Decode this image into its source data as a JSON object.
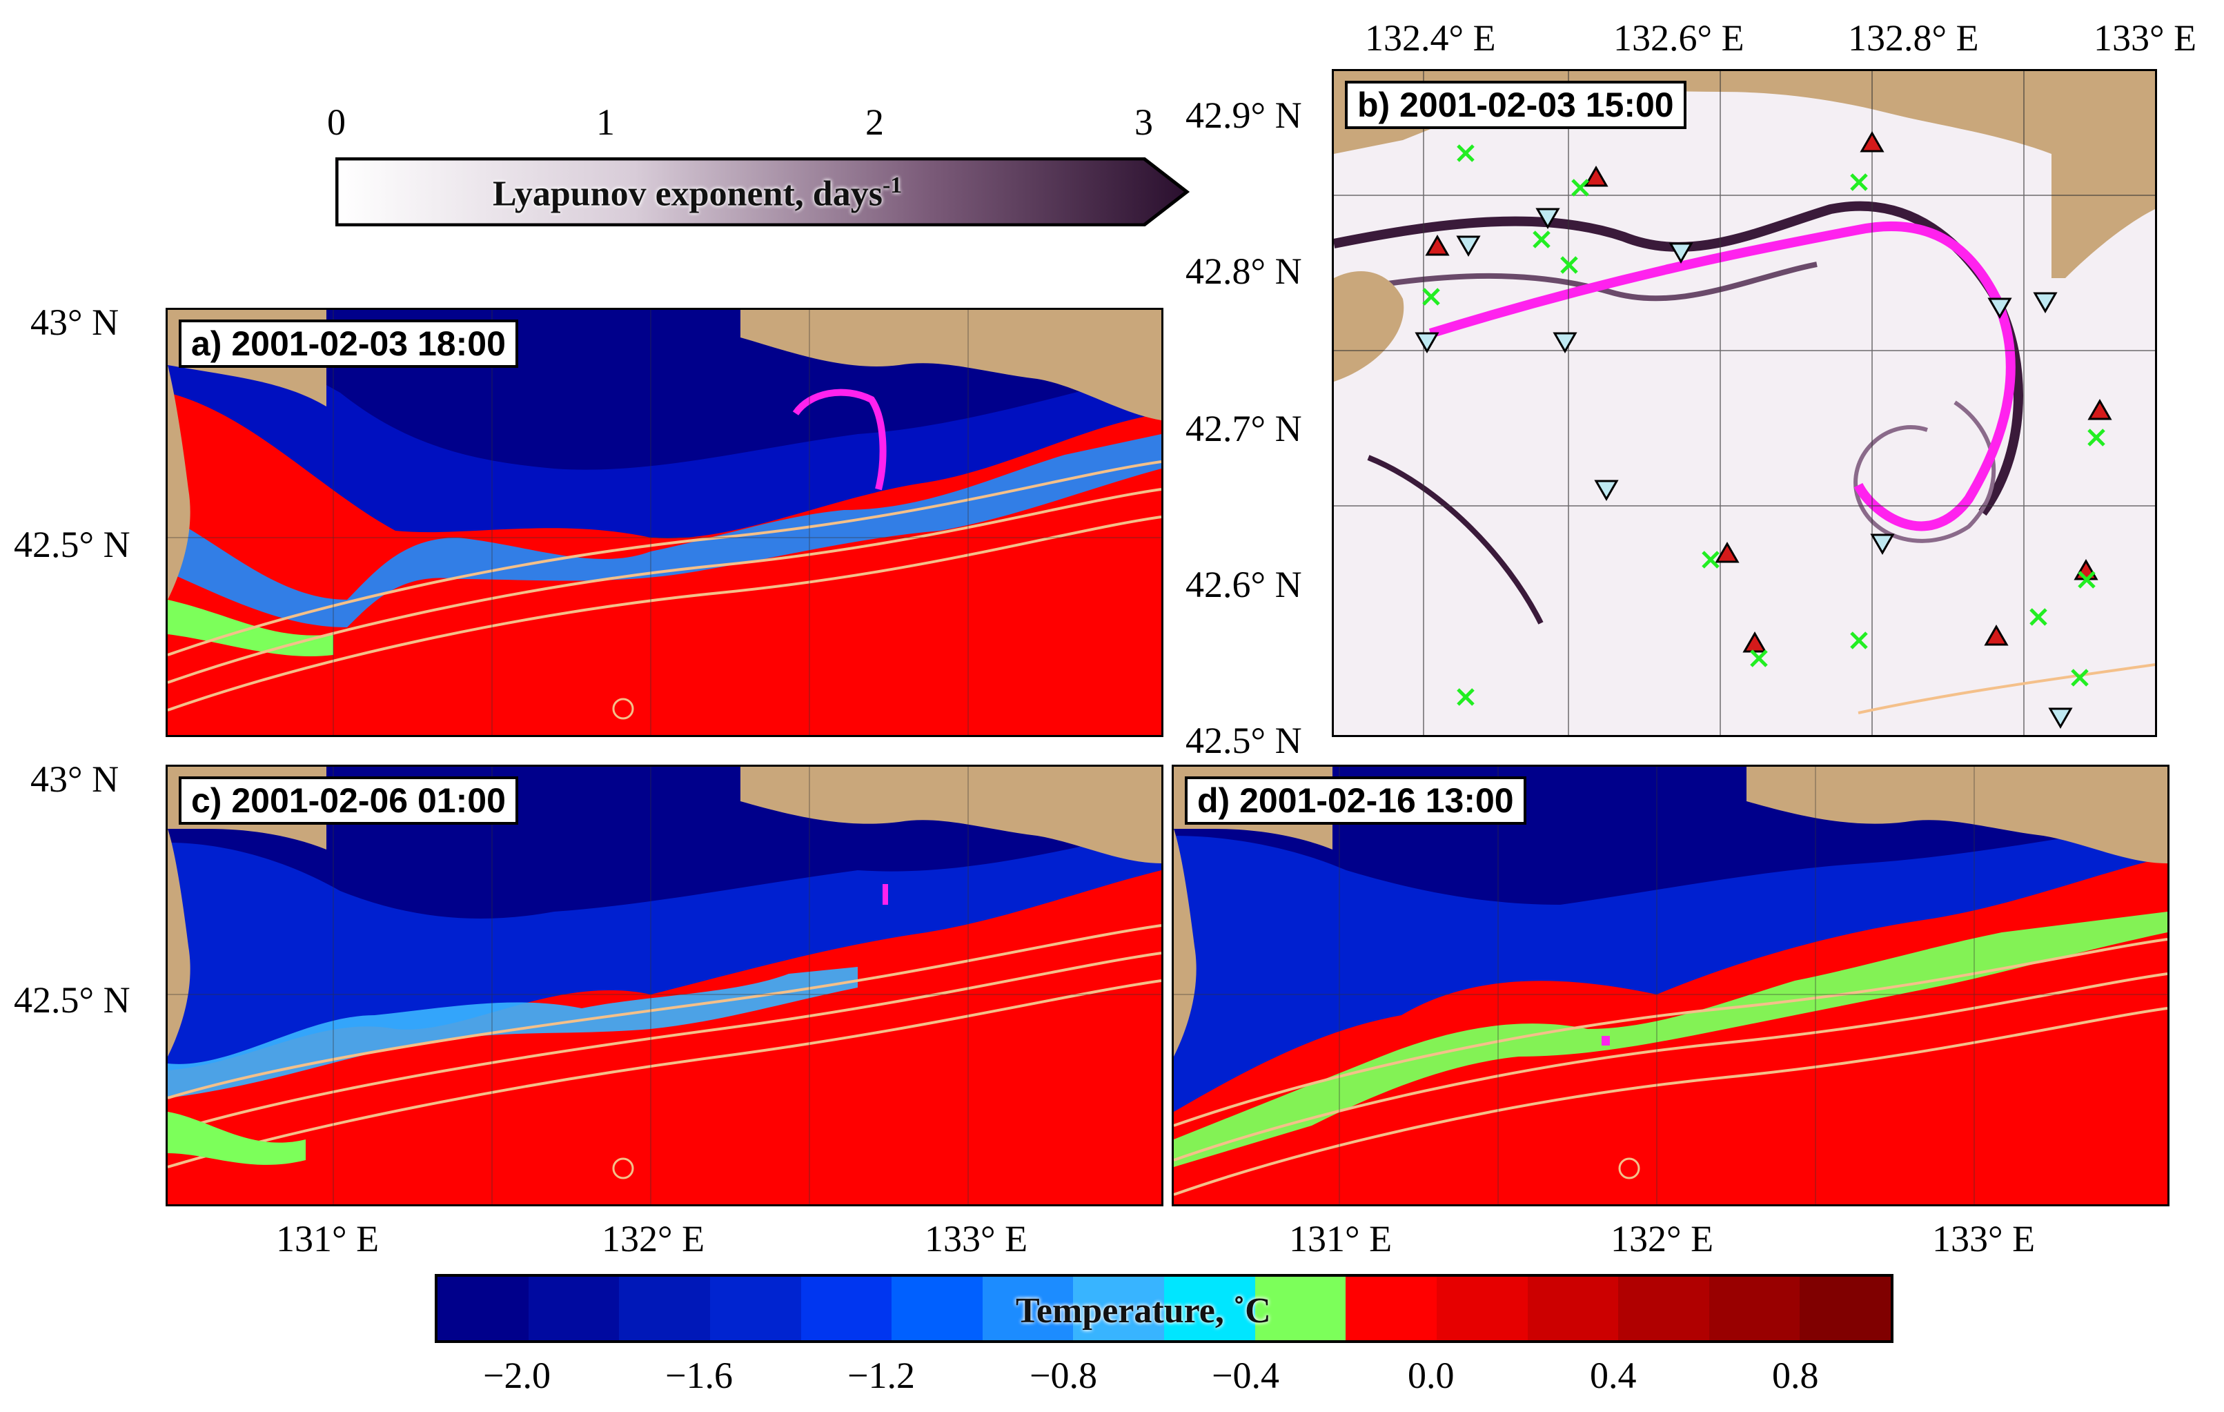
{
  "lyapunov_bar": {
    "title": "Lyapunov exponent, days",
    "title_sup": "-1",
    "ticks": [
      "0",
      "1",
      "2",
      "3"
    ],
    "color_low": "#ffffff",
    "color_high": "#2a0f2e"
  },
  "panels": {
    "a": {
      "title": "a) 2001-02-03 18:00"
    },
    "b": {
      "title": "b) 2001-02-03 15:00"
    },
    "c": {
      "title": "c) 2001-02-06 01:00"
    },
    "d": {
      "title": "d) 2001-02-16 13:00"
    }
  },
  "left_lat_labels": {
    "a_top": "43° N",
    "a_mid": "42.5° N",
    "c_top": "43° N",
    "c_mid": "42.5° N"
  },
  "bottom_lon_labels": {
    "c": [
      "131° E",
      "132° E",
      "133° E"
    ],
    "d": [
      "131° E",
      "132° E",
      "133° E"
    ]
  },
  "b_lon_labels": [
    "132.4° E",
    "132.6° E",
    "132.8° E",
    "133° E"
  ],
  "b_lat_labels": [
    "42.9° N",
    "42.8° N",
    "42.7° N",
    "42.6° N",
    "42.5° N"
  ],
  "temperature_bar": {
    "title": "Temperature, ˚C",
    "ticks": [
      "−2.0",
      "−1.6",
      "−1.2",
      "−0.8",
      "−0.4",
      "0.0",
      "0.4",
      "0.8"
    ],
    "colors": [
      "#00008b",
      "#000aa0",
      "#0018b8",
      "#0024d0",
      "#0036f0",
      "#0060ff",
      "#1c8cff",
      "#38b4ff",
      "#00e6ff",
      "#7cff5a",
      "#ff0000",
      "#e60000",
      "#cc0000",
      "#b00000",
      "#990000",
      "#800000"
    ]
  },
  "colors": {
    "land": "#c9a77b",
    "magenta_tracer": "#ff22ee",
    "marker_triangle_up": "#d41a1a",
    "marker_triangle_down": "#bfe9f2",
    "marker_cross": "#22ee22",
    "contour": "#f4c08a"
  }
}
